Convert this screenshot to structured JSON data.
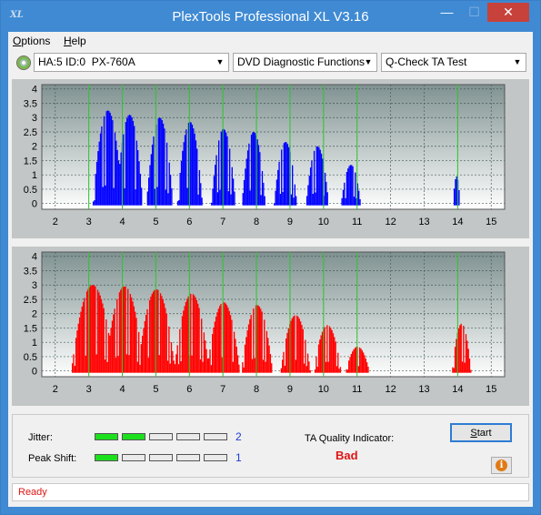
{
  "window": {
    "title": "PlexTools Professional XL V3.16",
    "app_icon_text": "XL",
    "minimize_glyph": "—",
    "maximize_glyph": "☐",
    "close_glyph": "✕"
  },
  "menu": [
    {
      "label": "Options",
      "underline": "O"
    },
    {
      "label": "Help",
      "underline": "H"
    }
  ],
  "toolbar": {
    "drive": "HA:5 ID:0  PX-760A",
    "function": "DVD Diagnostic Functions",
    "test": "Q-Check TA Test"
  },
  "colors": {
    "top_series": "#0000ff",
    "bottom_series": "#ff0000",
    "green_lines": "#2ec82e",
    "plot_bg_top": "#7f9291",
    "plot_bg_bottom": "#ffffff",
    "status_text": "#e01414",
    "value_text": "#1e3cd0"
  },
  "chart_data": [
    {
      "type": "area",
      "series": [
        {
          "color": "#0000ff"
        }
      ],
      "x_ticks": [
        "2",
        "3",
        "4",
        "5",
        "6",
        "7",
        "8",
        "9",
        "10",
        "11",
        "12",
        "13",
        "14",
        "15"
      ],
      "y_ticks": [
        "0",
        "0.5",
        "1",
        "1.5",
        "2",
        "2.5",
        "3",
        "3.5",
        "4"
      ],
      "xlim": [
        1.6,
        15.4
      ],
      "ylim": [
        -0.2,
        4.15
      ],
      "green_lines_at": [
        3,
        4,
        5,
        6,
        7,
        8,
        9,
        10,
        11,
        14
      ],
      "grid": true,
      "peaks": [
        {
          "center": 3.55,
          "height": 3.25,
          "width": 0.38
        },
        {
          "center": 4.2,
          "height": 3.1,
          "width": 0.34
        },
        {
          "center": 5.1,
          "height": 3.0,
          "width": 0.34
        },
        {
          "center": 6.0,
          "height": 2.85,
          "width": 0.32
        },
        {
          "center": 7.0,
          "height": 2.6,
          "width": 0.31
        },
        {
          "center": 7.9,
          "height": 2.5,
          "width": 0.3
        },
        {
          "center": 8.85,
          "height": 2.15,
          "width": 0.29
        },
        {
          "center": 9.8,
          "height": 2.0,
          "width": 0.29
        },
        {
          "center": 10.8,
          "height": 1.35,
          "width": 0.25
        },
        {
          "center": 13.95,
          "height": 0.95,
          "width": 0.09
        }
      ],
      "range": [
        2.9,
        14.15
      ]
    },
    {
      "type": "area",
      "series": [
        {
          "color": "#ff0000"
        }
      ],
      "x_ticks": [
        "2",
        "3",
        "4",
        "5",
        "6",
        "7",
        "8",
        "9",
        "10",
        "11",
        "12",
        "13",
        "14",
        "15"
      ],
      "y_ticks": [
        "0",
        "0.5",
        "1",
        "1.5",
        "2",
        "2.5",
        "3",
        "3.5",
        "4"
      ],
      "xlim": [
        1.6,
        15.4
      ],
      "ylim": [
        -0.2,
        4.15
      ],
      "green_lines_at": [
        3,
        4,
        5,
        6,
        7,
        8,
        9,
        10,
        11,
        14
      ],
      "grid": true,
      "peaks": [
        {
          "center": 3.1,
          "height": 3.0,
          "width": 0.55
        },
        {
          "center": 4.05,
          "height": 2.95,
          "width": 0.5
        },
        {
          "center": 5.0,
          "height": 2.85,
          "width": 0.48
        },
        {
          "center": 6.05,
          "height": 2.7,
          "width": 0.45
        },
        {
          "center": 7.0,
          "height": 2.4,
          "width": 0.42
        },
        {
          "center": 8.0,
          "height": 2.3,
          "width": 0.4
        },
        {
          "center": 9.15,
          "height": 1.95,
          "width": 0.38
        },
        {
          "center": 10.1,
          "height": 1.6,
          "width": 0.35
        },
        {
          "center": 11.0,
          "height": 0.85,
          "width": 0.3
        },
        {
          "center": 14.1,
          "height": 1.65,
          "width": 0.24
        }
      ],
      "range": [
        2.35,
        14.45
      ]
    }
  ],
  "metrics": {
    "jitter": {
      "label": "Jitter:",
      "value": "2",
      "segments_on": 2,
      "segments_total": 5
    },
    "peak_shift": {
      "label": "Peak Shift:",
      "value": "1",
      "segments_on": 1,
      "segments_total": 5
    }
  },
  "ta_quality": {
    "label": "TA Quality Indicator:",
    "value": "Bad"
  },
  "buttons": {
    "start": "Start",
    "start_underline": "S",
    "info_glyph": "i"
  },
  "status": {
    "text": "Ready"
  }
}
